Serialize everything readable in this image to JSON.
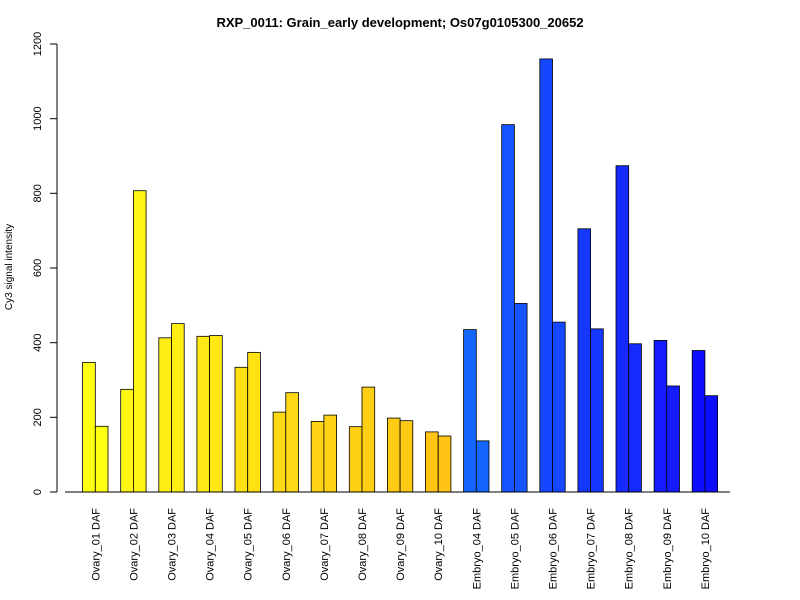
{
  "chart_data": {
    "type": "bar",
    "title": "RXP_0011: Grain_early development; Os07g0105300_20652",
    "xlabel": "",
    "ylabel": "Cy3 signal intensity",
    "ylim": [
      0,
      1200
    ],
    "yticks": [
      0,
      200,
      400,
      600,
      800,
      1000,
      1200
    ],
    "grid": false,
    "groups": [
      {
        "label": "Ovary_01 DAF",
        "values": [
          347,
          176
        ],
        "color": "#ffff14"
      },
      {
        "label": "Ovary_02 DAF",
        "values": [
          275,
          807
        ],
        "color": "#fff514"
      },
      {
        "label": "Ovary_03 DAF",
        "values": [
          413,
          451
        ],
        "color": "#ffee14"
      },
      {
        "label": "Ovary_04 DAF",
        "values": [
          417,
          419
        ],
        "color": "#ffe814"
      },
      {
        "label": "Ovary_05 DAF",
        "values": [
          334,
          374
        ],
        "color": "#ffe114"
      },
      {
        "label": "Ovary_06 DAF",
        "values": [
          214,
          266
        ],
        "color": "#ffda14"
      },
      {
        "label": "Ovary_07 DAF",
        "values": [
          189,
          206
        ],
        "color": "#ffd414"
      },
      {
        "label": "Ovary_08 DAF",
        "values": [
          175,
          281
        ],
        "color": "#ffcf14"
      },
      {
        "label": "Ovary_09 DAF",
        "values": [
          198,
          191
        ],
        "color": "#ffca14"
      },
      {
        "label": "Ovary_10 DAF",
        "values": [
          161,
          150
        ],
        "color": "#ffc414"
      },
      {
        "label": "Embryo_04 DAF",
        "values": [
          435,
          137
        ],
        "color": "#1466ff"
      },
      {
        "label": "Embryo_05 DAF",
        "values": [
          984,
          505
        ],
        "color": "#1455ff"
      },
      {
        "label": "Embryo_06 DAF",
        "values": [
          1160,
          455
        ],
        "color": "#1447ff"
      },
      {
        "label": "Embryo_07 DAF",
        "values": [
          705,
          437
        ],
        "color": "#1438ff"
      },
      {
        "label": "Embryo_08 DAF",
        "values": [
          874,
          397
        ],
        "color": "#142aff"
      },
      {
        "label": "Embryo_09 DAF",
        "values": [
          406,
          284
        ],
        "color": "#141cff"
      },
      {
        "label": "Embryo_10 DAF",
        "values": [
          379,
          258
        ],
        "color": "#0e0eff"
      }
    ]
  }
}
